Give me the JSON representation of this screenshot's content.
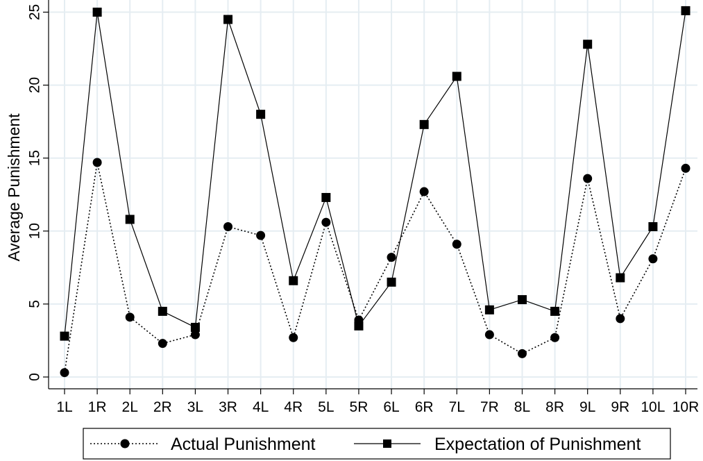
{
  "chart_data": {
    "type": "line",
    "title": "",
    "xlabel": "",
    "ylabel": "Average Punishment",
    "categories": [
      "1L",
      "1R",
      "2L",
      "2R",
      "3L",
      "3R",
      "4L",
      "4R",
      "5L",
      "5R",
      "6L",
      "6R",
      "7L",
      "7R",
      "8L",
      "8R",
      "9L",
      "9R",
      "10L",
      "10R"
    ],
    "ylim": [
      0,
      25
    ],
    "yticks": [
      "0",
      "5",
      "10",
      "15",
      "20",
      "25"
    ],
    "grid": true,
    "legend_position": "bottom",
    "series": [
      {
        "name": "Actual Punishment",
        "line_style": "dotted",
        "marker": "circle",
        "color": "#000000",
        "values": [
          0.3,
          14.7,
          4.1,
          2.3,
          2.9,
          10.3,
          9.7,
          2.7,
          10.6,
          3.9,
          8.2,
          12.7,
          9.1,
          2.9,
          1.6,
          2.7,
          13.6,
          4.0,
          8.1,
          14.3
        ]
      },
      {
        "name": "Expectation of Punishment",
        "line_style": "solid",
        "marker": "square",
        "color": "#000000",
        "values": [
          2.8,
          25.0,
          10.8,
          4.5,
          3.4,
          24.5,
          18.0,
          6.6,
          12.3,
          3.5,
          6.5,
          17.3,
          20.6,
          4.6,
          5.3,
          4.5,
          22.8,
          6.8,
          10.3,
          25.1
        ]
      }
    ]
  },
  "colors": {
    "grid": "#e5edf2",
    "axis": "#000000",
    "background": "#ffffff"
  }
}
